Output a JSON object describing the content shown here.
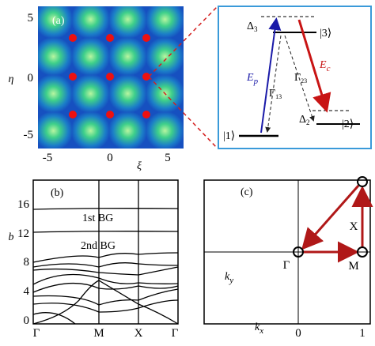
{
  "panel_a": {
    "label": "(a)",
    "xticks": [
      -5,
      0,
      5
    ],
    "yticks": [
      5,
      0,
      -5
    ],
    "xlabel": "ξ",
    "ylabel": "η"
  },
  "levels": {
    "delta3": {
      "main": "Δ",
      "sub": "3"
    },
    "state3": "|3⟩",
    "delta2": {
      "main": "Δ",
      "sub": "2"
    },
    "state2": "|2⟩",
    "state1": "|1⟩",
    "probe": {
      "main": "E",
      "sub": "p"
    },
    "coupling": {
      "main": "E",
      "sub": "c"
    },
    "gamma13": {
      "main": "Γ",
      "sub": "13"
    },
    "gamma23": {
      "main": "Γ",
      "sub": "23"
    }
  },
  "panel_b": {
    "label": "(b)",
    "ylabel": "b",
    "yticks": [
      0,
      4,
      8,
      12,
      16
    ],
    "xticks": [
      "Γ",
      "M",
      "X",
      "Γ"
    ],
    "gap1": "1st BG",
    "gap2": "2nd BG"
  },
  "panel_c": {
    "label": "(c)",
    "gamma": "Γ",
    "m": "M",
    "x": "X",
    "ky": {
      "main": "k",
      "sub": "y"
    },
    "kx": {
      "main": "k",
      "sub": "x"
    },
    "ticks": [
      0,
      1
    ]
  }
}
